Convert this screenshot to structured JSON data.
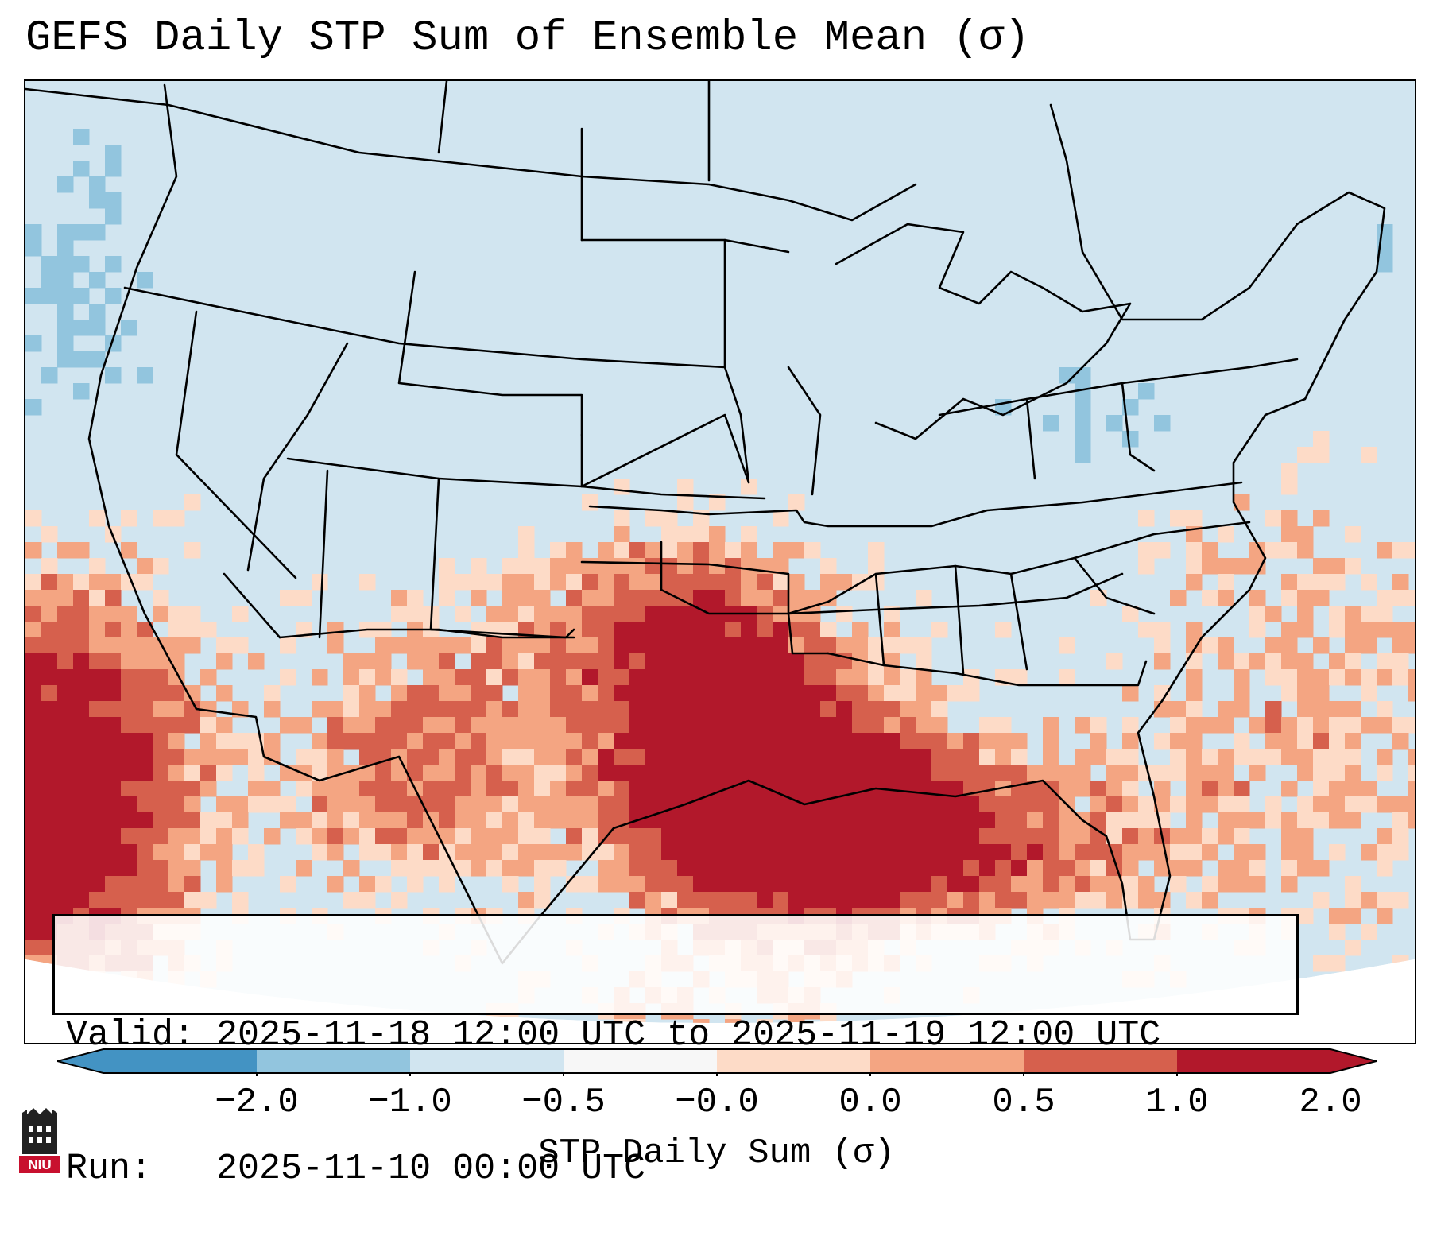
{
  "title": "GEFS Daily STP Sum of Ensemble Mean (σ)",
  "info": {
    "valid_line": "Valid: 2025-11-18 12:00 UTC to 2025-11-19 12:00 UTC",
    "run_line": "Run:   2025-11-10 00:00 UTC"
  },
  "colorbar": {
    "label": "STP Daily Sum (σ)",
    "ticks": [
      "−2.0",
      "−1.0",
      "−0.5",
      "−0.0",
      "0.0",
      "0.5",
      "1.0",
      "2.0"
    ],
    "colors": [
      "#4393c3",
      "#92c5de",
      "#d1e5f0",
      "#f7f7f7",
      "#fddbc7",
      "#f4a582",
      "#d6604d",
      "#b2182b"
    ],
    "extend": "both"
  },
  "logo": {
    "text": "NIU"
  },
  "field": {
    "background_color": "#d1e5f0",
    "outside_color": "#ffffff",
    "regions": [
      {
        "name": "southern-plains-core",
        "level": 7
      },
      {
        "name": "lower-mississippi-gulf",
        "level": 6
      },
      {
        "name": "eastern-pacific-core",
        "level": 7
      },
      {
        "name": "atlantic-offshore",
        "level": 4
      },
      {
        "name": "northeast-negative",
        "level": 1
      },
      {
        "name": "pacific-northwest-negative",
        "level": 1
      }
    ]
  }
}
